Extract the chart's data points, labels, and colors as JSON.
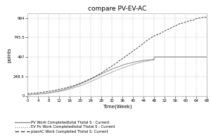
{
  "title": "compare PV-EV-AC",
  "xlabel": "Time(Week)",
  "ylabel": "points",
  "xlim": [
    0,
    68
  ],
  "ylim": [
    0,
    1050
  ],
  "yticks": [
    0,
    248.5,
    497,
    745.5,
    994
  ],
  "ytick_labels": [
    "0",
    "248.5",
    "497",
    "745.5",
    "994"
  ],
  "xticks": [
    0,
    4,
    8,
    12,
    16,
    20,
    24,
    28,
    32,
    36,
    40,
    44,
    48,
    52,
    56,
    60,
    64,
    68
  ],
  "legend_labels": [
    "PV Work Completedtotal Ttotal S : Current",
    "EV Pv Work Completedtotal Ttotal S : Current",
    "planAC Work Completed Ttotal S: Current"
  ],
  "pv_color": "#888888",
  "ev_color": "#aaaaaa",
  "ac_color": "#444444",
  "background_color": "#ffffff",
  "grid_color": "#cccccc"
}
